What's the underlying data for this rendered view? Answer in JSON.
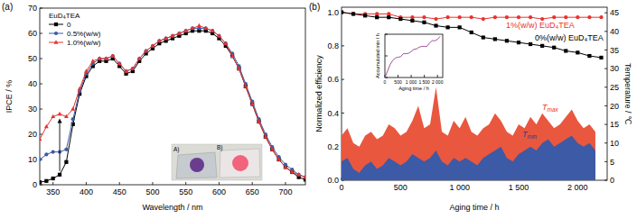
{
  "chart_data": [
    {
      "type": "line",
      "title": "(a)",
      "x_label": "Wavelength / nm",
      "y_label": "IPCE / %",
      "xlim": [
        330,
        730
      ],
      "xticks": [
        350,
        400,
        450,
        500,
        550,
        600,
        650,
        700
      ],
      "ylim": [
        0,
        70
      ],
      "yticks": [
        0,
        10,
        20,
        30,
        40,
        50,
        60,
        70
      ],
      "legend": "upper left",
      "legend_title": "EuD₄TEA",
      "annotations": [
        {
          "text": "A)"
        },
        {
          "text": "B)"
        }
      ],
      "x": [
        330,
        340,
        350,
        360,
        370,
        380,
        390,
        400,
        410,
        420,
        430,
        440,
        450,
        460,
        470,
        480,
        490,
        500,
        510,
        520,
        530,
        540,
        550,
        560,
        570,
        580,
        590,
        600,
        610,
        620,
        630,
        640,
        650,
        660,
        670,
        680,
        690,
        700,
        710,
        720,
        730
      ],
      "series": [
        {
          "name": "0",
          "color": "#000000",
          "marker": "square",
          "values": [
            1,
            1.5,
            2.5,
            4,
            9,
            24,
            36,
            43,
            47,
            49,
            49,
            50,
            47,
            44,
            45,
            49,
            52,
            54,
            56,
            57,
            58,
            59,
            60,
            61,
            61,
            61,
            60,
            58,
            55,
            51,
            46,
            39,
            32,
            25,
            19,
            14,
            10,
            7,
            5,
            3,
            2
          ]
        },
        {
          "name": "0.5%(w/w)",
          "color": "#3b5ba9",
          "marker": "circle",
          "values": [
            10,
            12,
            13,
            13,
            14,
            26,
            37,
            44,
            48,
            50,
            50,
            51,
            48,
            45,
            46,
            50,
            53,
            55,
            57,
            58,
            59,
            60,
            61,
            62,
            62,
            62,
            61,
            59,
            56,
            52,
            47,
            40,
            33,
            26,
            20,
            15,
            11,
            8,
            6,
            4,
            3
          ]
        },
        {
          "name": "1.0%(w/w)",
          "color": "#e8322d",
          "marker": "triangle",
          "values": [
            18,
            23,
            27,
            28,
            27,
            30,
            38,
            45,
            49,
            50,
            50,
            51,
            48,
            45,
            46,
            50,
            53,
            55,
            57,
            58,
            59,
            60,
            61,
            62,
            63,
            62,
            61,
            59,
            56,
            51,
            46,
            39,
            32,
            25,
            19,
            14,
            10,
            7,
            5,
            4,
            3
          ]
        }
      ]
    },
    {
      "type": "line",
      "title": "(b)",
      "x_label": "Aging time / h",
      "y_label": "Normalized efficiency",
      "y2_label": "Temperature / ℃",
      "xlim": [
        0,
        2250
      ],
      "xticks": [
        0,
        500,
        {
          "value": 1000,
          "label": "1 000"
        },
        {
          "value": 1500,
          "label": "1 500"
        },
        {
          "value": 2000,
          "label": "2 000"
        }
      ],
      "ylim": [
        0,
        1.03
      ],
      "yticks": [
        {
          "value": 0,
          "label": "0.0"
        },
        {
          "value": 0.2,
          "label": "0.2"
        },
        {
          "value": 0.4,
          "label": "0.4"
        },
        {
          "value": 0.6,
          "label": "0.6"
        },
        {
          "value": 0.8,
          "label": "0.8"
        },
        {
          "value": 1,
          "label": "1.0"
        }
      ],
      "y2lim": [
        0,
        46.5
      ],
      "y2ticks": [
        0,
        5,
        10,
        15,
        20,
        25,
        30,
        35,
        40,
        45
      ],
      "series": [
        {
          "name": "Tmax",
          "type": "area",
          "axis": "y2",
          "color": "#e9573f",
          "x": [
            0,
            50,
            100,
            150,
            200,
            250,
            300,
            350,
            400,
            450,
            500,
            550,
            600,
            650,
            700,
            750,
            800,
            850,
            900,
            950,
            1000,
            1050,
            1100,
            1150,
            1200,
            1250,
            1300,
            1350,
            1400,
            1450,
            1500,
            1550,
            1600,
            1650,
            1700,
            1750,
            1800,
            1850,
            1900,
            1950,
            2000,
            2050,
            2100,
            2150
          ],
          "values": [
            12,
            14,
            10,
            9,
            12,
            13,
            11,
            12,
            15,
            14,
            12,
            13,
            16,
            20,
            14,
            15,
            25,
            13,
            12,
            16,
            14,
            17,
            13,
            12,
            14,
            15,
            18,
            16,
            13,
            12,
            15,
            14,
            17,
            15,
            18,
            16,
            14,
            15,
            17,
            19,
            16,
            14,
            15,
            13
          ]
        },
        {
          "name": "Tmin",
          "type": "area",
          "axis": "y2",
          "color": "#3c5aa6",
          "x": [
            0,
            50,
            100,
            150,
            200,
            250,
            300,
            350,
            400,
            450,
            500,
            550,
            600,
            650,
            700,
            750,
            800,
            850,
            900,
            950,
            1000,
            1050,
            1100,
            1150,
            1200,
            1250,
            1300,
            1350,
            1400,
            1450,
            1500,
            1550,
            1600,
            1650,
            1700,
            1750,
            1800,
            1850,
            1900,
            1950,
            2000,
            2050,
            2100,
            2150
          ],
          "values": [
            5,
            6,
            3,
            2,
            4,
            5,
            3,
            4,
            6,
            5,
            4,
            5,
            7,
            6,
            5,
            6,
            8,
            5,
            4,
            6,
            5,
            6,
            5,
            4,
            6,
            7,
            8,
            9,
            6,
            5,
            7,
            8,
            9,
            8,
            10,
            11,
            9,
            10,
            11,
            12,
            10,
            9,
            10,
            8
          ]
        },
        {
          "name": "1%(w/w) EuD₄TEA",
          "type": "line",
          "color": "#e8322d",
          "marker": "circle",
          "x": [
            0,
            100,
            200,
            300,
            400,
            500,
            600,
            700,
            800,
            900,
            1000,
            1100,
            1200,
            1300,
            1400,
            1500,
            1600,
            1700,
            1800,
            1900,
            2000,
            2100,
            2200
          ],
          "values": [
            1.0,
            0.99,
            0.99,
            0.99,
            0.99,
            0.97,
            0.97,
            0.97,
            0.96,
            0.97,
            0.97,
            0.97,
            0.96,
            0.97,
            0.97,
            0.97,
            0.97,
            0.96,
            0.97,
            0.97,
            0.97,
            0.97,
            0.97
          ]
        },
        {
          "name": "0%(w/w) EuD₄TEA",
          "type": "line",
          "color": "#000000",
          "marker": "square",
          "x": [
            0,
            100,
            200,
            300,
            400,
            500,
            600,
            700,
            800,
            900,
            1000,
            1100,
            1200,
            1300,
            1400,
            1500,
            1600,
            1700,
            1800,
            1900,
            2000,
            2100,
            2200
          ],
          "values": [
            1.0,
            0.99,
            0.98,
            0.97,
            0.97,
            0.96,
            0.95,
            0.94,
            0.92,
            0.91,
            0.91,
            0.88,
            0.85,
            0.84,
            0.83,
            0.82,
            0.81,
            0.8,
            0.79,
            0.77,
            0.76,
            0.74,
            0.73
          ]
        }
      ]
    },
    {
      "type": "line",
      "x_label": "Aging time / h",
      "y_label": "Accumulated min / h",
      "xlim": [
        0,
        2200
      ],
      "xticks": [
        0,
        500,
        {
          "value": 1000,
          "label": "1 000"
        },
        {
          "value": 1500,
          "label": "1 500"
        },
        {
          "value": 2000,
          "label": "2 000"
        }
      ],
      "ylim": [
        0,
        100
      ],
      "yticks": [
        0,
        50,
        100
      ],
      "tick_labels": "x",
      "x": [
        0,
        100,
        200,
        300,
        400,
        500,
        600,
        700,
        800,
        900,
        1000,
        1100,
        1200,
        1300,
        1400,
        1500,
        1600,
        1700,
        1800,
        1900,
        2000,
        2100
      ],
      "series": [
        {
          "name": "Accumulated min",
          "color": "#a0529a",
          "values": [
            0,
            15,
            30,
            40,
            45,
            47,
            48,
            55,
            55,
            56,
            60,
            65,
            66,
            70,
            72,
            72,
            72,
            80,
            85,
            85,
            88,
            95
          ]
        }
      ]
    }
  ]
}
